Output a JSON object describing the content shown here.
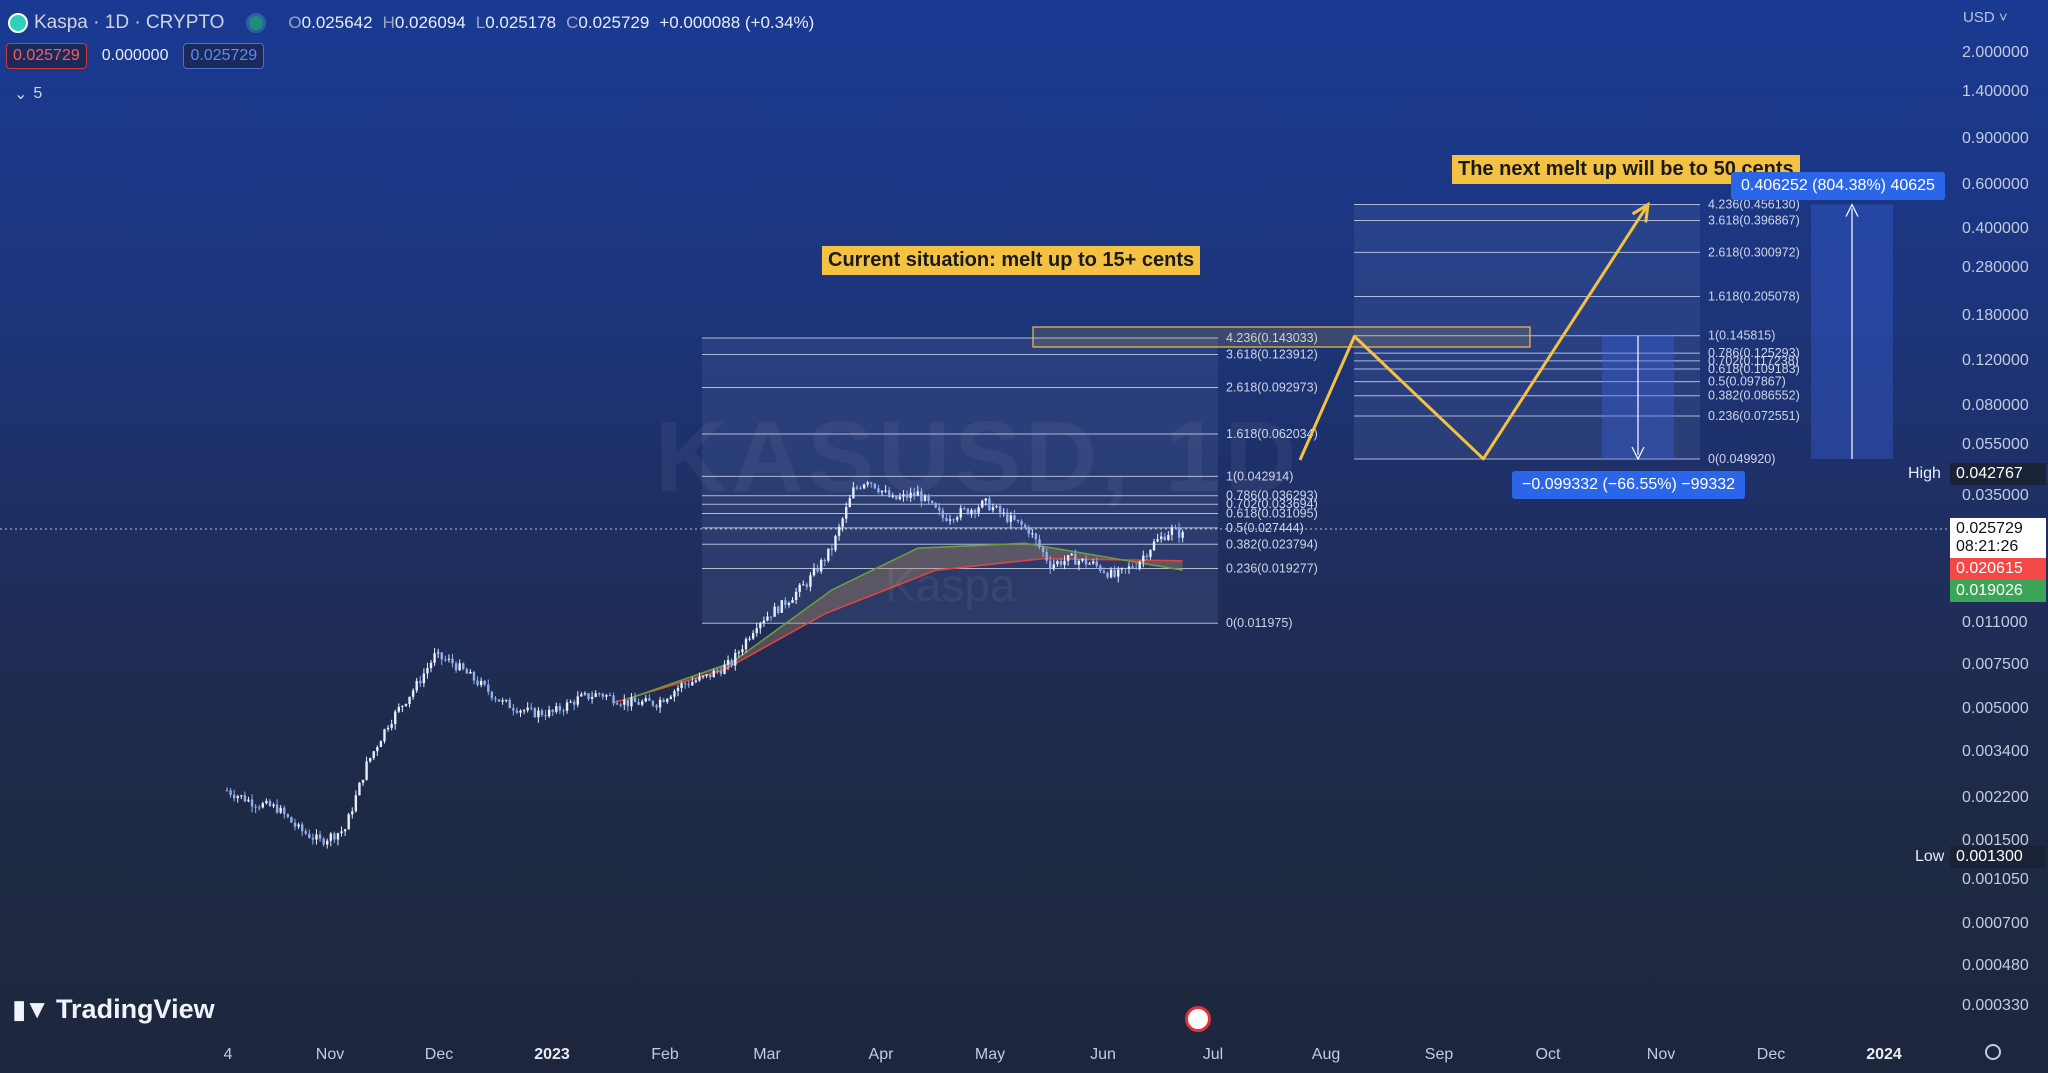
{
  "header": {
    "symbol": "Kaspa · 1D · CRYPTO",
    "open_label": "O",
    "open": "0.025642",
    "high_label": "H",
    "high": "0.026094",
    "low_label": "L",
    "low": "0.025178",
    "close_label": "C",
    "close": "0.025729",
    "change": "+0.000088 (+0.34%)"
  },
  "price_boxes": {
    "bid": "0.025729",
    "spread": "0.000000",
    "ask": "0.025729"
  },
  "indicators": {
    "count": "5"
  },
  "currency": "USD",
  "watermark": {
    "symbol": "KASUSD, 1D",
    "name": "Kaspa"
  },
  "y_axis": [
    "2.000000",
    "1.400000",
    "0.900000",
    "0.600000",
    "0.400000",
    "0.280000",
    "0.180000",
    "0.120000",
    "0.080000",
    "0.055000",
    "0.035000",
    "0.011000",
    "0.007500",
    "0.005000",
    "0.003400",
    "0.002200",
    "0.001500",
    "0.001050",
    "0.000700",
    "0.000480",
    "0.000330"
  ],
  "x_axis": [
    "4",
    "Nov",
    "Dec",
    "2023",
    "Feb",
    "Mar",
    "Apr",
    "May",
    "Jun",
    "Jul",
    "Aug",
    "Sep",
    "Oct",
    "Nov",
    "Dec",
    "2024"
  ],
  "price_tags": {
    "current": "0.025729",
    "countdown": "08:21:26",
    "ma_red": "0.020615",
    "ma_green": "0.019026",
    "high_label": "High",
    "high": "0.042767",
    "low_label": "Low",
    "low": "0.001300"
  },
  "annotations": {
    "current": "Current situation: melt up to 15+ cents",
    "next": "The next melt up will be to 50 cents"
  },
  "measures": {
    "up": "0.406252 (804.38%) 40625",
    "down": "−0.099332 (−66.55%) −99332"
  },
  "fib1": [
    {
      "t": "4.236(0.143033)",
      "v": 0.143033
    },
    {
      "t": "3.618(0.123912)",
      "v": 0.123912
    },
    {
      "t": "2.618(0.092973)",
      "v": 0.092973
    },
    {
      "t": "1.618(0.062034)",
      "v": 0.062034
    },
    {
      "t": "1(0.042914)",
      "v": 0.042914
    },
    {
      "t": "0.786(0.036293)",
      "v": 0.036293
    },
    {
      "t": "0.702(0.033694)",
      "v": 0.033694
    },
    {
      "t": "0.618(0.031095)",
      "v": 0.031095
    },
    {
      "t": "0.5(0.027444)",
      "v": 0.027444
    },
    {
      "t": "0.382(0.023794)",
      "v": 0.023794
    },
    {
      "t": "0.236(0.019277)",
      "v": 0.019277
    },
    {
      "t": "0(0.011975)",
      "v": 0.011975
    }
  ],
  "fib2": [
    {
      "t": "4.236(0.456130)",
      "v": 0.45613
    },
    {
      "t": "3.618(0.396867)",
      "v": 0.396867
    },
    {
      "t": "2.618(0.300972)",
      "v": 0.300972
    },
    {
      "t": "1.618(0.205078)",
      "v": 0.205078
    },
    {
      "t": "1(0.145815)",
      "v": 0.145815
    },
    {
      "t": "0.786(0.125293)",
      "v": 0.125293
    },
    {
      "t": "0.702(0.117238)",
      "v": 0.117238
    },
    {
      "t": "0.618(0.109183)",
      "v": 0.109183
    },
    {
      "t": "0.5(0.097867)",
      "v": 0.097867
    },
    {
      "t": "0.382(0.086552)",
      "v": 0.086552
    },
    {
      "t": "0.236(0.072551)",
      "v": 0.072551
    },
    {
      "t": "0(0.049920)",
      "v": 0.04992
    }
  ],
  "chart_data": {
    "type": "candlestick",
    "x_range": [
      "2022-10-04",
      "2024-01-20"
    ],
    "y_scale": "log",
    "y_range": [
      0.00024,
      2.7
    ],
    "price_path": [
      [
        "2022-10-04",
        0.0028
      ],
      [
        "2022-10-12",
        0.0025
      ],
      [
        "2022-10-18",
        0.0024
      ],
      [
        "2022-10-24",
        0.002
      ],
      [
        "2022-10-30",
        0.0018
      ],
      [
        "2022-11-06",
        0.002
      ],
      [
        "2022-11-12",
        0.0035
      ],
      [
        "2022-11-18",
        0.005
      ],
      [
        "2022-11-26",
        0.007
      ],
      [
        "2022-12-01",
        0.009
      ],
      [
        "2022-12-06",
        0.0085
      ],
      [
        "2022-12-14",
        0.007
      ],
      [
        "2022-12-20",
        0.006
      ],
      [
        "2022-12-28",
        0.0055
      ],
      [
        "2023-01-03",
        0.0055
      ],
      [
        "2023-01-10",
        0.0062
      ],
      [
        "2023-01-16",
        0.0065
      ],
      [
        "2023-01-24",
        0.006
      ],
      [
        "2023-02-01",
        0.006
      ],
      [
        "2023-02-08",
        0.007
      ],
      [
        "2023-02-15",
        0.0075
      ],
      [
        "2023-02-22",
        0.0085
      ],
      [
        "2023-03-01",
        0.012
      ],
      [
        "2023-03-08",
        0.014
      ],
      [
        "2023-03-15",
        0.017
      ],
      [
        "2023-03-22",
        0.023
      ],
      [
        "2023-03-28",
        0.038
      ],
      [
        "2023-04-01",
        0.042
      ],
      [
        "2023-04-08",
        0.035
      ],
      [
        "2023-04-15",
        0.037
      ],
      [
        "2023-04-22",
        0.03
      ],
      [
        "2023-04-29",
        0.032
      ],
      [
        "2023-05-04",
        0.034
      ],
      [
        "2023-05-10",
        0.03
      ],
      [
        "2023-05-16",
        0.027
      ],
      [
        "2023-05-22",
        0.02
      ],
      [
        "2023-05-28",
        0.021
      ],
      [
        "2023-06-03",
        0.02
      ],
      [
        "2023-06-09",
        0.018
      ],
      [
        "2023-06-15",
        0.02
      ],
      [
        "2023-06-20",
        0.024
      ],
      [
        "2023-06-25",
        0.027
      ],
      [
        "2023-06-28",
        0.0257
      ]
    ],
    "ma_red": [
      [
        "2023-01-20",
        0.006
      ],
      [
        "2023-02-20",
        0.008
      ],
      [
        "2023-03-20",
        0.013
      ],
      [
        "2023-04-20",
        0.019
      ],
      [
        "2023-05-20",
        0.021
      ],
      [
        "2023-06-28",
        0.0206
      ]
    ],
    "ma_green": [
      [
        "2023-01-24",
        0.0062
      ],
      [
        "2023-02-22",
        0.0085
      ],
      [
        "2023-03-22",
        0.016
      ],
      [
        "2023-04-15",
        0.023
      ],
      [
        "2023-05-15",
        0.024
      ],
      [
        "2023-06-28",
        0.019
      ]
    ],
    "projection_path": [
      [
        "2023-06-28",
        0.035
      ],
      [
        "2023-08-15",
        0.145
      ],
      [
        "2023-09-20",
        0.05
      ],
      [
        "2023-11-05",
        0.456
      ]
    ]
  }
}
